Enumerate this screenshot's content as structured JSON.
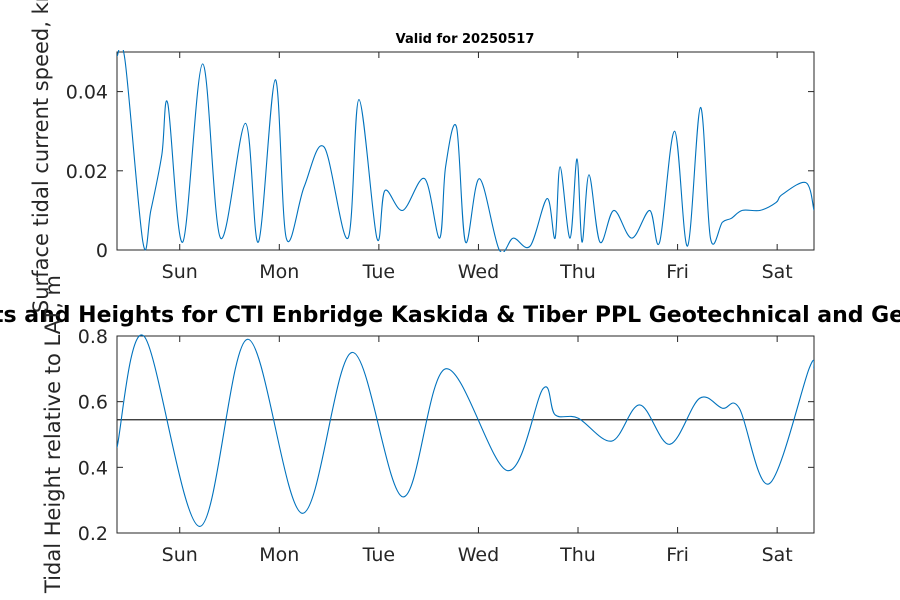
{
  "chart_data": [
    {
      "type": "line",
      "title": "Valid for 20250517",
      "ylabel": "Surface tidal current speed, kn",
      "xlim": [
        0,
        7
      ],
      "ylim": [
        0,
        0.05
      ],
      "yticks": [
        0,
        0.02,
        0.04
      ],
      "ytick_labels": [
        "0",
        "0.02",
        "0.04"
      ],
      "xticks": [
        0.63,
        1.63,
        2.63,
        3.63,
        4.63,
        5.63,
        6.63
      ],
      "xtick_labels": [
        "Sun",
        "Mon",
        "Tue",
        "Wed",
        "Thu",
        "Fri",
        "Sat"
      ],
      "grid": false,
      "series": [
        {
          "color": "#0072BD",
          "x": [
            0,
            0.08,
            0.26,
            0.34,
            0.45,
            0.51,
            0.66,
            0.86,
            1.04,
            1.29,
            1.42,
            1.59,
            1.7,
            1.88,
            2.08,
            2.32,
            2.43,
            2.61,
            2.69,
            2.87,
            3.09,
            3.24,
            3.3,
            3.41,
            3.5,
            3.64,
            3.84,
            3.98,
            4.15,
            4.32,
            4.4,
            4.45,
            4.55,
            4.62,
            4.67,
            4.74,
            4.85,
            4.99,
            5.17,
            5.35,
            5.45,
            5.6,
            5.73,
            5.86,
            5.96,
            6.08,
            6.17,
            6.28,
            6.46,
            6.62,
            6.68,
            6.92,
            7.0
          ],
          "y": [
            0.049,
            0.048,
            0.002,
            0.01,
            0.024,
            0.037,
            0.002,
            0.047,
            0.003,
            0.032,
            0.002,
            0.043,
            0.003,
            0.016,
            0.026,
            0.003,
            0.038,
            0.003,
            0.015,
            0.01,
            0.018,
            0.003,
            0.021,
            0.031,
            0.002,
            0.018,
            0.0,
            0.003,
            0.001,
            0.013,
            0.003,
            0.021,
            0.003,
            0.023,
            0.002,
            0.019,
            0.002,
            0.01,
            0.003,
            0.01,
            0.002,
            0.03,
            0.001,
            0.036,
            0.003,
            0.007,
            0.008,
            0.01,
            0.01,
            0.012,
            0.014,
            0.017,
            0.01
          ]
        }
      ]
    },
    {
      "type": "line",
      "title": "Currents and Heights for CTI Enbridge  Kaskida & Tiber PPL Geotechnical and Geophysical",
      "ylabel": "Tidal Height relative to LAT, m",
      "xlim": [
        0,
        7
      ],
      "ylim": [
        0.2,
        0.8
      ],
      "yticks": [
        0.2,
        0.4,
        0.6,
        0.8
      ],
      "ytick_labels": [
        "0.2",
        "0.4",
        "0.6",
        "0.8"
      ],
      "xticks": [
        0.63,
        1.63,
        2.63,
        3.63,
        4.63,
        5.63,
        6.63
      ],
      "xtick_labels": [
        "Sun",
        "Mon",
        "Tue",
        "Wed",
        "Thu",
        "Fri",
        "Sat"
      ],
      "grid": false,
      "reference_line": {
        "y": 0.545,
        "color": "#262626"
      },
      "series": [
        {
          "color": "#0072BD",
          "x": [
            0,
            0.27,
            0.83,
            1.31,
            1.86,
            2.36,
            2.87,
            3.3,
            3.92,
            4.28,
            4.4,
            4.63,
            4.97,
            5.25,
            5.55,
            5.85,
            6.08,
            6.25,
            6.55,
            6.95,
            7.0
          ],
          "y": [
            0.46,
            0.8,
            0.22,
            0.79,
            0.26,
            0.75,
            0.31,
            0.7,
            0.39,
            0.64,
            0.56,
            0.55,
            0.48,
            0.59,
            0.47,
            0.61,
            0.58,
            0.58,
            0.35,
            0.7,
            0.7
          ]
        }
      ]
    }
  ]
}
